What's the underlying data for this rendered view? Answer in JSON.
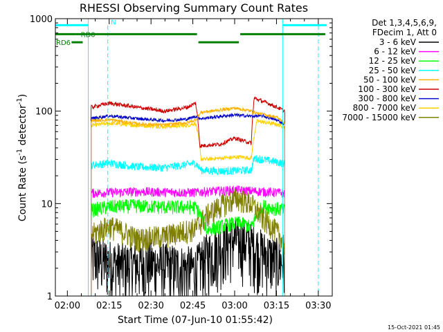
{
  "chart_data": {
    "type": "line",
    "title": "RHESSI Observing Summary Count Rates",
    "ylabel_main": "Count Rate (s",
    "ylabel_sup1": "-1",
    "ylabel_mid": " detector",
    "ylabel_sup2": "-1",
    "ylabel_end": ")",
    "xlabel": "Start Time (07-Jun-10 01:55:42)",
    "y_scale": "log",
    "ylim": [
      1,
      1000
    ],
    "xlim_minutes": [
      115.7,
      215
    ],
    "x_ticks": [
      {
        "label": "02:00",
        "minute": 120
      },
      {
        "label": "02:15",
        "minute": 135
      },
      {
        "label": "02:30",
        "minute": 150
      },
      {
        "label": "02:45",
        "minute": 165
      },
      {
        "label": "03:00",
        "minute": 180
      },
      {
        "label": "03:15",
        "minute": 195
      },
      {
        "label": "03:30",
        "minute": 210
      }
    ],
    "y_ticks": [
      {
        "label": "1",
        "value": 1
      },
      {
        "label": "10",
        "value": 10
      },
      {
        "label": "100",
        "value": 100
      },
      {
        "label": "1000",
        "value": 1000
      }
    ],
    "legend_header": [
      "Det 1,3,4,5,6,9,",
      "FDecim 1, Att 0"
    ],
    "series": [
      {
        "name": "3 - 6 keV",
        "color": "#000000",
        "pts": [
          [
            128.5,
            2.8
          ],
          [
            132,
            2.5
          ],
          [
            140,
            2.2
          ],
          [
            150,
            2.3
          ],
          [
            160,
            2.1
          ],
          [
            166,
            2.0
          ],
          [
            170,
            2.8
          ],
          [
            175,
            3.6
          ],
          [
            180,
            4.2
          ],
          [
            184,
            4.0
          ],
          [
            187,
            3.5
          ],
          [
            191,
            2.9
          ],
          [
            194,
            2.6
          ],
          [
            198,
            2.3
          ]
        ]
      },
      {
        "name": "6 - 12 keV",
        "color": "#ff00ff",
        "pts": [
          [
            128.5,
            13
          ],
          [
            135,
            13.2
          ],
          [
            145,
            13.5
          ],
          [
            155,
            13.3
          ],
          [
            166,
            13.2
          ],
          [
            170,
            13.5
          ],
          [
            180,
            14
          ],
          [
            190,
            13.5
          ],
          [
            198,
            13
          ]
        ]
      },
      {
        "name": "12 - 25 keV",
        "color": "#00ff00",
        "pts": [
          [
            128.5,
            8.5
          ],
          [
            135,
            9.3
          ],
          [
            145,
            9.5
          ],
          [
            155,
            9.2
          ],
          [
            166,
            9.2
          ],
          [
            170,
            5.2
          ],
          [
            178,
            6.0
          ],
          [
            182,
            6.2
          ],
          [
            186,
            5.6
          ],
          [
            190,
            9.5
          ],
          [
            198,
            8.5
          ]
        ]
      },
      {
        "name": "25 - 50 keV",
        "color": "#00ffff",
        "pts": [
          [
            128.5,
            26
          ],
          [
            135,
            27.5
          ],
          [
            145,
            25
          ],
          [
            155,
            24.5
          ],
          [
            163,
            26.5
          ],
          [
            166,
            27.5
          ],
          [
            168,
            23
          ],
          [
            175,
            22.5
          ],
          [
            182,
            22.8
          ],
          [
            186,
            23
          ],
          [
            187,
            31
          ],
          [
            193,
            29
          ],
          [
            198,
            27
          ]
        ]
      },
      {
        "name": "50 - 100 keV",
        "color": "#ffb000",
        "pts": [
          [
            128.5,
            78
          ],
          [
            135,
            81
          ],
          [
            145,
            73
          ],
          [
            155,
            71
          ],
          [
            163,
            75
          ],
          [
            166,
            80
          ],
          [
            168,
            97
          ],
          [
            175,
            103
          ],
          [
            180,
            108
          ],
          [
            186,
            100
          ],
          [
            188,
            95
          ],
          [
            195,
            86
          ],
          [
            198,
            74
          ]
        ]
      },
      {
        "name": "100 - 300 keV",
        "color": "#cc0000",
        "pts": [
          [
            128.5,
            110
          ],
          [
            135,
            122
          ],
          [
            145,
            110
          ],
          [
            155,
            100
          ],
          [
            163,
            110
          ],
          [
            166,
            122
          ],
          [
            167.5,
            42
          ],
          [
            175,
            44
          ],
          [
            180,
            51
          ],
          [
            186,
            45
          ],
          [
            187,
            138
          ],
          [
            193,
            118
          ],
          [
            198,
            100
          ]
        ]
      },
      {
        "name": "300 - 800 keV",
        "color": "#0000cc",
        "pts": [
          [
            128.5,
            83
          ],
          [
            135,
            89
          ],
          [
            145,
            83
          ],
          [
            155,
            79
          ],
          [
            163,
            82
          ],
          [
            166,
            88
          ],
          [
            168,
            83
          ],
          [
            175,
            88
          ],
          [
            180,
            91
          ],
          [
            186,
            88
          ],
          [
            190,
            89
          ],
          [
            195,
            80
          ],
          [
            198,
            73
          ]
        ]
      },
      {
        "name": "800 - 7000 keV",
        "color": "#ffd000",
        "pts": [
          [
            128.5,
            70
          ],
          [
            135,
            74
          ],
          [
            145,
            70
          ],
          [
            155,
            68
          ],
          [
            163,
            70
          ],
          [
            166,
            74
          ],
          [
            168,
            30
          ],
          [
            175,
            31
          ],
          [
            182,
            32
          ],
          [
            186,
            31
          ],
          [
            188,
            78
          ],
          [
            195,
            72
          ],
          [
            198,
            67
          ]
        ]
      },
      {
        "name": "7000 - 15000 keV",
        "color": "#808000",
        "pts": [
          [
            128.5,
            4.6
          ],
          [
            135,
            5.8
          ],
          [
            145,
            4.2
          ],
          [
            155,
            4.5
          ],
          [
            163,
            5.2
          ],
          [
            166,
            5.4
          ],
          [
            170,
            7.5
          ],
          [
            176,
            10
          ],
          [
            181,
            11.5
          ],
          [
            186,
            10
          ],
          [
            190,
            7
          ],
          [
            195,
            5
          ],
          [
            198,
            3.6
          ]
        ]
      }
    ],
    "saa_line": {
      "label": "",
      "color": "#00ffff",
      "level_value": 800,
      "segments": [
        [
          115.7,
          127.5
        ],
        [
          197.2,
          210
        ]
      ]
    },
    "night_line": {
      "label": "N",
      "color": "#00ffff"
    },
    "decim_line": {
      "label": "RD0",
      "color": "#008000"
    },
    "decim_line2": {
      "label": "RD6",
      "color": "#008000"
    },
    "grid": false,
    "legend_position": "right"
  },
  "footer": {
    "date": "15-Oct-2021 01:45"
  }
}
